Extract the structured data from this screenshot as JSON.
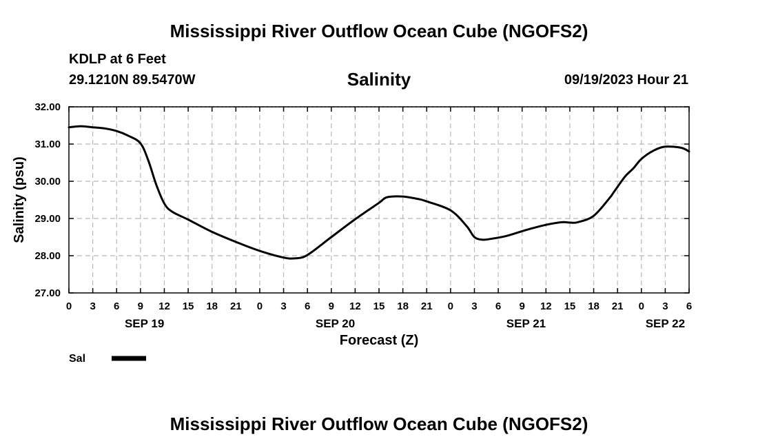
{
  "header": {
    "title": "Mississippi River Outflow Ocean Cube (NGOFS2)",
    "station": "KDLP at 6 Feet",
    "coords": "29.1210N  89.5470W",
    "variable": "Salinity",
    "datetime": "09/19/2023 Hour 21"
  },
  "footer": {
    "title": "Mississippi River Outflow Ocean Cube (NGOFS2)"
  },
  "chart_data": {
    "type": "line",
    "title": "Salinity",
    "xlabel": "Forecast (Z)",
    "ylabel": "Salinity (psu)",
    "xlim": [
      0,
      78
    ],
    "ylim": [
      27.0,
      32.0
    ],
    "grid": true,
    "xticks": [
      0,
      3,
      6,
      9,
      12,
      15,
      18,
      21,
      24,
      27,
      30,
      33,
      36,
      39,
      42,
      45,
      48,
      51,
      54,
      57,
      60,
      63,
      66,
      69,
      72,
      75,
      78
    ],
    "xtick_labels": [
      "0",
      "3",
      "6",
      "9",
      "12",
      "15",
      "18",
      "21",
      "0",
      "3",
      "6",
      "9",
      "12",
      "15",
      "18",
      "21",
      "0",
      "3",
      "6",
      "9",
      "12",
      "15",
      "18",
      "21",
      "0",
      "3",
      "6"
    ],
    "yticks": [
      27.0,
      28.0,
      29.0,
      30.0,
      31.0,
      32.0
    ],
    "ytick_labels": [
      "27.00",
      "28.00",
      "29.00",
      "30.00",
      "31.00",
      "32.00"
    ],
    "date_labels": [
      {
        "x": 9.5,
        "label": "SEP 19"
      },
      {
        "x": 33.5,
        "label": "SEP 20"
      },
      {
        "x": 57.5,
        "label": "SEP 21"
      },
      {
        "x": 75.0,
        "label": "SEP 22"
      }
    ],
    "legend": [
      {
        "name": "Sal",
        "position": "bottom-left"
      }
    ],
    "series": [
      {
        "name": "Sal",
        "x": [
          0,
          1.5,
          3,
          4.5,
          6,
          7.5,
          9,
          10,
          11,
          12,
          13,
          15,
          18,
          21,
          24,
          27,
          28.5,
          30,
          33,
          36,
          39,
          40,
          42,
          44,
          45,
          48,
          50,
          51,
          52,
          53,
          55,
          57,
          58,
          60,
          62,
          63,
          64,
          66,
          68,
          68.5,
          69,
          70,
          71,
          72,
          73.5,
          75,
          77,
          78
        ],
        "values": [
          31.45,
          31.48,
          31.45,
          31.42,
          31.35,
          31.22,
          31.02,
          30.55,
          29.9,
          29.4,
          29.18,
          28.97,
          28.64,
          28.37,
          28.13,
          27.95,
          27.93,
          28.02,
          28.5,
          28.98,
          29.42,
          29.57,
          29.59,
          29.52,
          29.46,
          29.22,
          28.8,
          28.5,
          28.43,
          28.45,
          28.53,
          28.66,
          28.72,
          28.83,
          28.9,
          28.89,
          28.9,
          29.07,
          29.55,
          29.7,
          29.85,
          30.14,
          30.35,
          30.6,
          30.82,
          30.93,
          30.9,
          30.8
        ]
      }
    ]
  }
}
